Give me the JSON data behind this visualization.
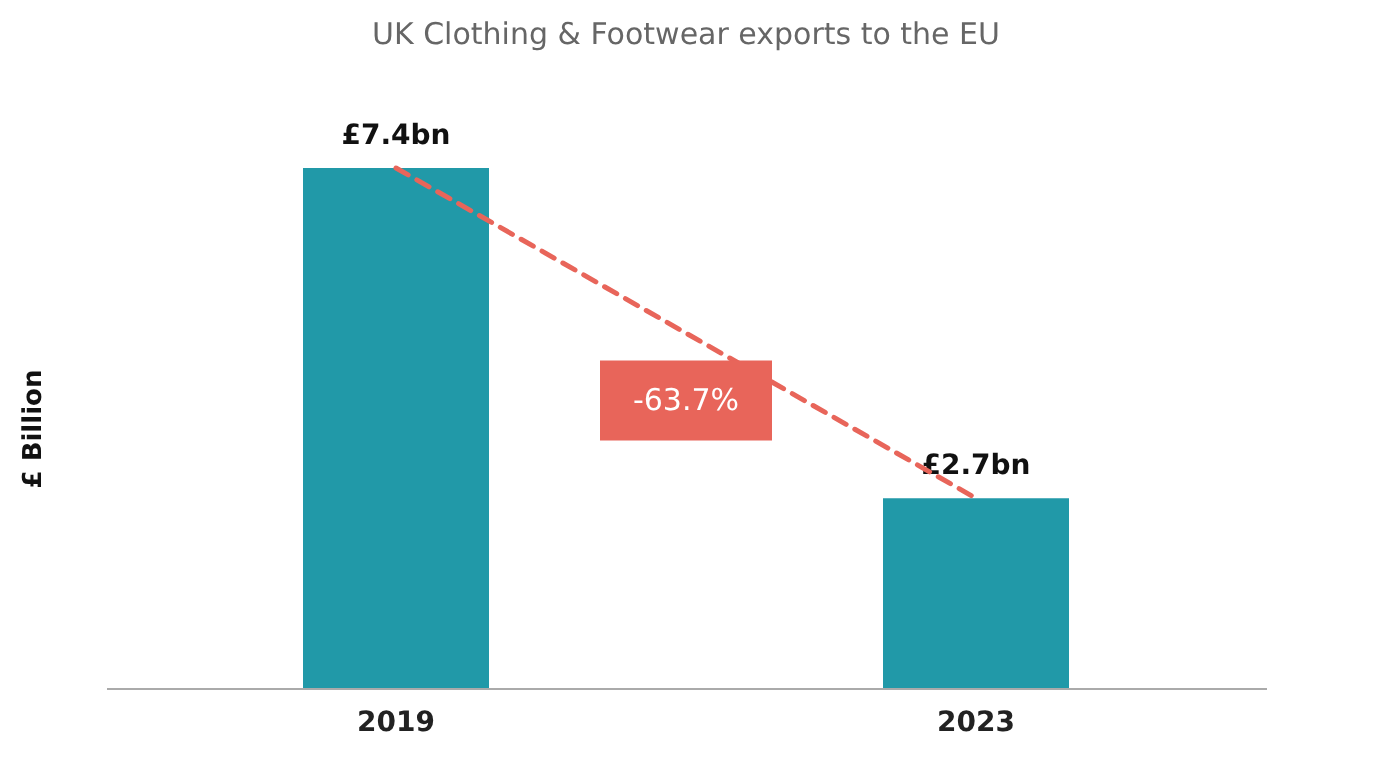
{
  "chart_data": {
    "type": "bar",
    "title": "UK Clothing & Footwear exports to the EU",
    "ylabel": "£ Billion",
    "categories": [
      "2019",
      "2023"
    ],
    "series": [
      {
        "color": "#2199a8",
        "values": [
          7.4,
          2.7
        ],
        "value_labels": [
          "£7.4bn",
          "£2.7bn"
        ]
      },
      {
        "type": "line",
        "color": "#e8655a",
        "values": [
          7.4,
          2.7
        ],
        "line_style": "dashed"
      }
    ],
    "tick_labels": "x",
    "grid": false,
    "legend": false,
    "annotations": [
      "-63.7%"
    ]
  }
}
